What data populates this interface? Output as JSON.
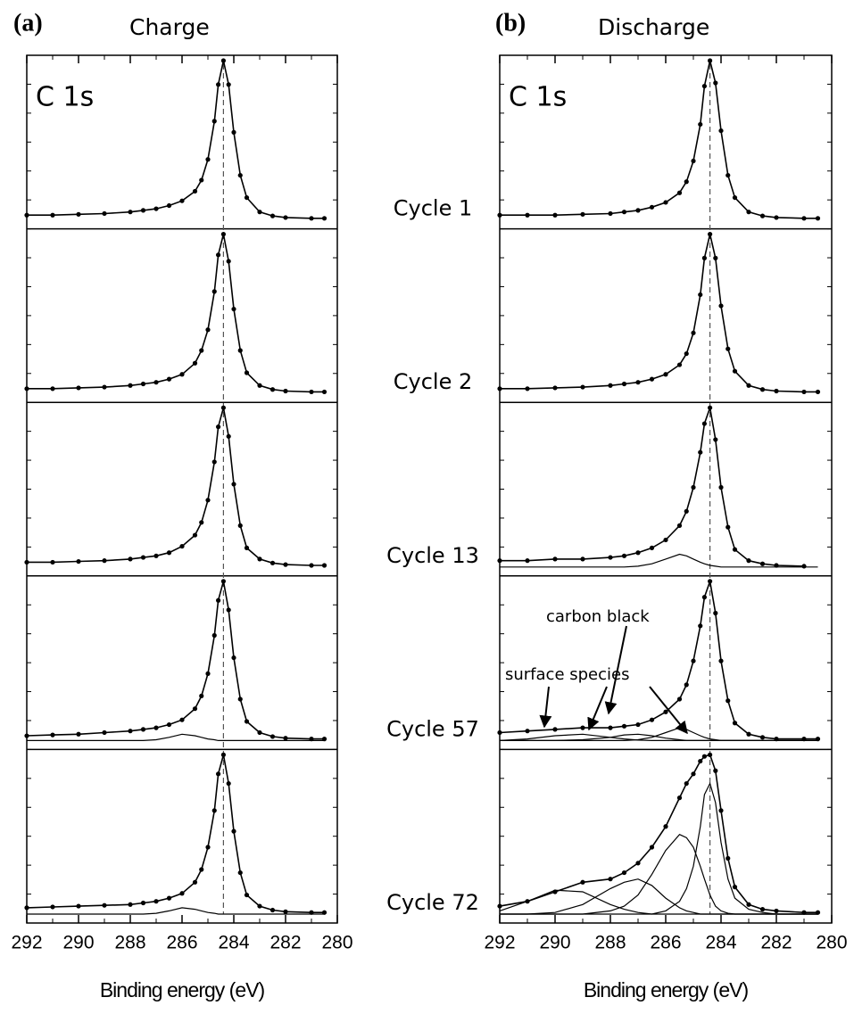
{
  "chart_data": [
    {
      "type": "line",
      "panel": "(a)",
      "title": "Charge",
      "annotation": "C 1s",
      "xlabel": "Binding energy (eV)",
      "xlim": [
        292,
        280
      ],
      "xticks": [
        292,
        290,
        288,
        286,
        284,
        282,
        280
      ],
      "ylim": [
        0,
        100
      ],
      "reference_line": 284.4,
      "color": "#000000",
      "x": [
        292,
        291,
        290,
        289,
        288,
        287.5,
        287,
        286.5,
        286,
        285.5,
        285.25,
        285,
        284.75,
        284.6,
        284.4,
        284.2,
        284,
        283.75,
        283.5,
        283,
        282.5,
        282,
        281,
        280.5
      ],
      "spectra": [
        {
          "values": [
            3,
            3,
            3.5,
            4,
            5,
            6,
            7,
            9,
            12,
            18,
            25,
            38,
            62,
            85,
            100,
            85,
            55,
            28,
            14,
            5,
            2.5,
            1.5,
            1,
            1
          ],
          "components": []
        },
        {
          "values": [
            3,
            3,
            3.5,
            4,
            5,
            6,
            7,
            9,
            12,
            19,
            27,
            40,
            64,
            87,
            100,
            83,
            53,
            27,
            13,
            5,
            2.5,
            1.5,
            1,
            1
          ],
          "components": []
        },
        {
          "values": [
            3,
            3,
            3.5,
            4,
            5,
            6,
            7,
            9,
            13,
            20,
            28,
            42,
            66,
            88,
            100,
            82,
            52,
            26,
            12,
            5,
            2.5,
            1.5,
            1,
            1
          ],
          "components": []
        },
        {
          "values": [
            3,
            3.5,
            4,
            5,
            6,
            7,
            8,
            10,
            13,
            20,
            28,
            42,
            66,
            88,
            100,
            82,
            52,
            26,
            12,
            5,
            2.5,
            1.5,
            1,
            1
          ],
          "components": [
            [
              0,
              0,
              0,
              0,
              0,
              0,
              0.5,
              2,
              4,
              3,
              2,
              1,
              0.5,
              0,
              0,
              0,
              0,
              0,
              0,
              0,
              0,
              0,
              0,
              0
            ]
          ]
        },
        {
          "values": [
            4,
            4.5,
            5,
            5.5,
            6,
            7,
            8,
            10,
            13,
            20,
            28,
            42,
            65,
            88,
            100,
            82,
            52,
            26,
            12,
            5,
            2.5,
            1.5,
            1,
            1
          ],
          "components": [
            [
              0,
              0,
              0,
              0,
              0,
              0,
              0.5,
              2,
              4,
              3,
              2,
              1,
              0.5,
              0,
              0,
              0,
              0,
              0,
              0,
              0,
              0,
              0,
              0,
              0
            ]
          ]
        }
      ]
    },
    {
      "type": "line",
      "panel": "(b)",
      "title": "Discharge",
      "annotation": "C 1s",
      "xlabel": "Binding energy (eV)",
      "xlim": [
        292,
        280
      ],
      "xticks": [
        292,
        290,
        288,
        286,
        284,
        282,
        280
      ],
      "ylim": [
        0,
        100
      ],
      "reference_line": 284.4,
      "color": "#000000",
      "notes": [
        "carbon black",
        "surface species"
      ],
      "x": [
        292,
        291,
        290,
        289,
        288,
        287.5,
        287,
        286.5,
        286,
        285.5,
        285.25,
        285,
        284.75,
        284.6,
        284.4,
        284.2,
        284,
        283.75,
        283.5,
        283,
        282.5,
        282,
        281,
        280.5
      ],
      "spectra": [
        {
          "values": [
            3,
            3,
            3,
            3.5,
            4,
            5,
            6,
            8,
            11,
            17,
            24,
            37,
            60,
            84,
            100,
            86,
            56,
            28,
            14,
            5,
            2.5,
            1.5,
            1,
            1
          ],
          "components": []
        },
        {
          "values": [
            3,
            3,
            3.5,
            4,
            5,
            6,
            7,
            9,
            12,
            18,
            25,
            38,
            62,
            85,
            100,
            85,
            55,
            28,
            14,
            5,
            2.5,
            1.5,
            1,
            1
          ],
          "components": []
        },
        {
          "values": [
            4,
            4,
            5,
            5,
            6,
            7,
            9,
            12,
            17,
            26,
            35,
            50,
            72,
            90,
            100,
            80,
            50,
            25,
            11,
            4,
            2,
            1,
            0.5,
            null
          ],
          "components": [
            [
              0,
              0,
              0,
              0,
              0,
              0,
              0.5,
              2,
              5,
              8,
              7,
              5,
              3,
              2,
              1,
              0.5,
              0,
              0,
              0,
              0,
              0,
              0,
              0,
              0
            ]
          ]
        },
        {
          "values": [
            5,
            6,
            7,
            8,
            8,
            9,
            10,
            13,
            18,
            26,
            35,
            50,
            72,
            90,
            100,
            80,
            50,
            25,
            11,
            4,
            2,
            1,
            1,
            1
          ],
          "components": [
            [
              0,
              0,
              0,
              0,
              0,
              0,
              0.5,
              2,
              5,
              8,
              7,
              5,
              3,
              2,
              1,
              0.5,
              0,
              0,
              0,
              0,
              0,
              0,
              0,
              0
            ],
            [
              0,
              0,
              0,
              0.5,
              2,
              3.5,
              4,
              3,
              1.5,
              0.5,
              0,
              0,
              0,
              0,
              0,
              0,
              0,
              0,
              0,
              0,
              0,
              0,
              0,
              0
            ],
            [
              0,
              1,
              3,
              4,
              2,
              1,
              0.3,
              0,
              0,
              0,
              0,
              0,
              0,
              0,
              0,
              0,
              0,
              0,
              0,
              0,
              0,
              0,
              0,
              0
            ]
          ]
        },
        {
          "values": [
            5,
            8,
            14,
            20,
            22,
            26,
            32,
            42,
            55,
            73,
            82,
            88,
            96,
            99,
            100,
            90,
            65,
            35,
            17,
            6,
            3,
            2,
            1,
            1
          ],
          "components": [
            [
              0,
              0,
              0,
              0,
              0,
              0,
              0,
              0,
              2,
              8,
              16,
              30,
              55,
              75,
              82,
              70,
              45,
              22,
              10,
              3,
              1,
              0,
              0,
              0
            ],
            [
              0,
              0,
              0,
              0,
              2,
              5,
              12,
              25,
              40,
              50,
              48,
              42,
              30,
              22,
              12,
              5,
              2,
              0.5,
              0,
              0,
              0,
              0,
              0,
              0
            ],
            [
              0,
              0,
              1,
              6,
              16,
              20,
              22,
              18,
              10,
              4,
              2,
              1,
              0,
              0,
              0,
              0,
              0,
              0,
              0,
              0,
              0,
              0,
              0,
              0
            ],
            [
              2,
              8,
              15,
              14,
              6,
              3,
              1,
              0,
              0,
              0,
              0,
              0,
              0,
              0,
              0,
              0,
              0,
              0,
              0,
              0,
              0,
              0,
              0,
              0
            ]
          ]
        }
      ]
    }
  ],
  "cycle_labels": [
    "Cycle 1",
    "Cycle 2",
    "Cycle 13",
    "Cycle 57",
    "Cycle 72"
  ]
}
